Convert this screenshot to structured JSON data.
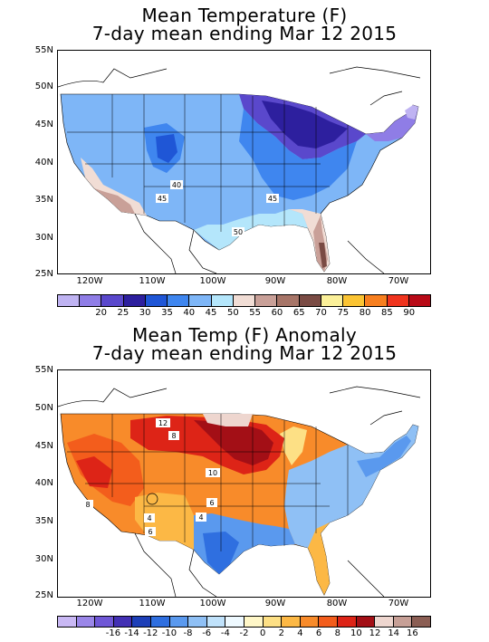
{
  "top": {
    "title_line1": "Mean Temperature (F)",
    "title_line2": "7-day mean ending Mar 12 2015",
    "lat_labels": [
      "55N",
      "50N",
      "45N",
      "40N",
      "35N",
      "30N",
      "25N"
    ],
    "lon_labels": [
      "120W",
      "110W",
      "100W",
      "90W",
      "80W",
      "70W"
    ],
    "contour_labels": [
      "40",
      "45",
      "45",
      "50"
    ],
    "colorbar": {
      "colors": [
        "#bfb3f2",
        "#8f7de6",
        "#5a48cc",
        "#2d1f9e",
        "#1f56d6",
        "#3f86ef",
        "#7eb6f7",
        "#b4e6fb",
        "#f1ddd5",
        "#c9a098",
        "#a77568",
        "#7a4b44",
        "#fbf099",
        "#fbc433",
        "#f77f1f",
        "#f0341e",
        "#b80a17"
      ],
      "labels": [
        "20",
        "25",
        "30",
        "35",
        "40",
        "45",
        "50",
        "55",
        "60",
        "65",
        "70",
        "75",
        "80",
        "85",
        "90"
      ]
    }
  },
  "bottom": {
    "title_line1": "Mean Temp (F) Anomaly",
    "title_line2": "7-day mean ending Mar 12 2015",
    "lat_labels": [
      "55N",
      "50N",
      "45N",
      "40N",
      "35N",
      "30N",
      "25N"
    ],
    "lon_labels": [
      "120W",
      "110W",
      "100W",
      "90W",
      "80W",
      "70W"
    ],
    "contour_labels": [
      "12",
      "8",
      "10",
      "8",
      "6",
      "4",
      "4",
      "6"
    ],
    "colorbar": {
      "colors": [
        "#c9b8f4",
        "#9a86e8",
        "#6f57d6",
        "#4330b4",
        "#1d3fb8",
        "#2f6fe0",
        "#5a99ee",
        "#8fc0f5",
        "#c0e2fb",
        "#eef9ff",
        "#fff7c8",
        "#fde085",
        "#fcb845",
        "#f88b2a",
        "#f35d1c",
        "#dd2417",
        "#a30f16",
        "#eed6cf",
        "#c69f96",
        "#8b5e54"
      ],
      "labels": [
        "-16",
        "-14",
        "-12",
        "-10",
        "-8",
        "-6",
        "-4",
        "-2",
        "0",
        "2",
        "4",
        "6",
        "8",
        "10",
        "12",
        "14",
        "16"
      ]
    }
  }
}
